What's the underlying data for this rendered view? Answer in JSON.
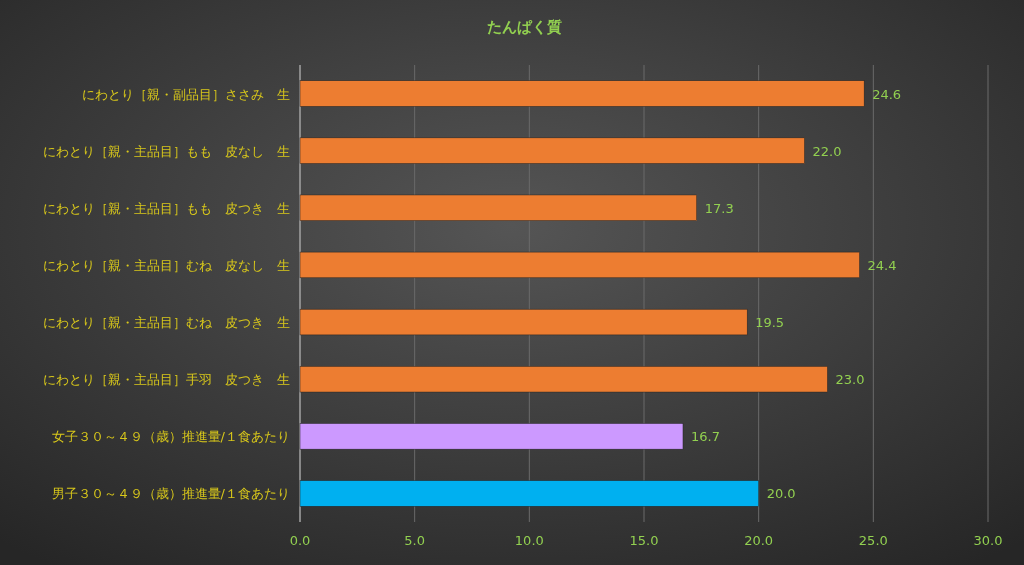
{
  "chart_data": {
    "type": "bar",
    "orientation": "horizontal",
    "title": "たんぱく質",
    "categories": [
      "にわとり［親・副品目］ささみ　生",
      "にわとり［親・主品目］もも　皮なし　生",
      "にわとり［親・主品目］もも　皮つき　生",
      "にわとり［親・主品目］むね　皮なし　生",
      "にわとり［親・主品目］むね　皮つき　生",
      "にわとり［親・主品目］手羽　皮つき　生",
      "女子３０～４９（歳）推進量/１食あたり",
      "男子３０～４９（歳）推進量/１食あたり"
    ],
    "values": [
      24.6,
      22.0,
      17.3,
      24.4,
      19.5,
      23.0,
      16.7,
      20.0
    ],
    "colors": [
      "#ed7d31",
      "#ed7d31",
      "#ed7d31",
      "#ed7d31",
      "#ed7d31",
      "#ed7d31",
      "#cc99ff",
      "#00b0f0"
    ],
    "value_labels": [
      "24.6",
      "22.0",
      "17.3",
      "24.4",
      "19.5",
      "23.0",
      "16.7",
      "20.0"
    ],
    "xlim": [
      0,
      30
    ],
    "xticks": [
      {
        "value": 0,
        "label": "0.0"
      },
      {
        "value": 5,
        "label": "5.0"
      },
      {
        "value": 10,
        "label": "10.0"
      },
      {
        "value": 15,
        "label": "15.0"
      },
      {
        "value": 20,
        "label": "20.0"
      },
      {
        "value": 25,
        "label": "25.0"
      },
      {
        "value": 30,
        "label": "30.0"
      }
    ],
    "grid": "x"
  }
}
